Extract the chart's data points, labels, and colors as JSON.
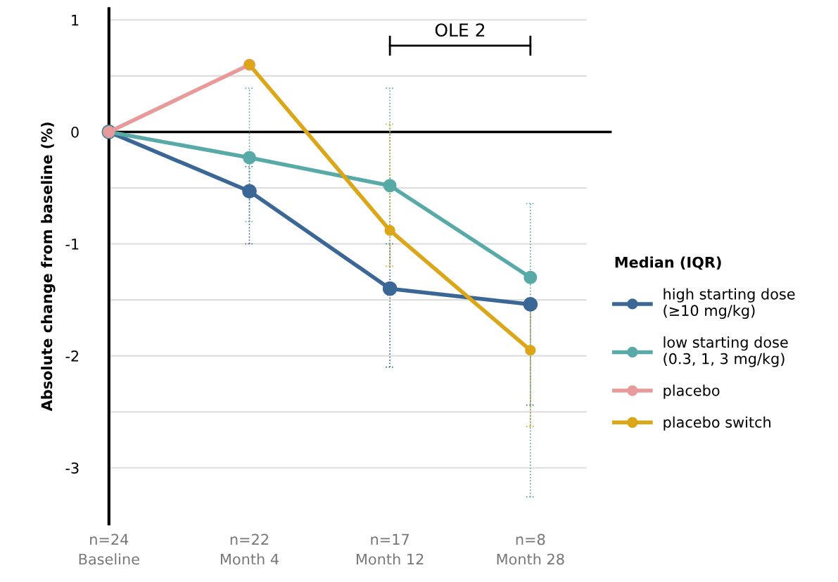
{
  "chart_data": {
    "type": "line",
    "ylabel": "Absolute change from baseline (%)",
    "legend_title": "Median (IQR)",
    "categories": [
      "n=24\nBaseline",
      "n=22\nMonth 4",
      "n=17\nMonth 12",
      "n=8\nMonth 28"
    ],
    "series": [
      {
        "name": "high starting dose\n(≥10 mg/kg)",
        "color": "#3b6796",
        "values": [
          0,
          -0.53,
          -1.4,
          -1.54
        ],
        "errors": [
          null,
          [
            -1.0,
            -0.31
          ],
          [
            -2.1,
            -1.0
          ],
          [
            -2.44,
            -1.49
          ]
        ]
      },
      {
        "name": "low starting dose\n(0.3, 1, 3 mg/kg)",
        "color": "#58aaa8",
        "values": [
          0,
          -0.23,
          -0.48,
          -1.3
        ],
        "errors": [
          null,
          [
            -0.8,
            0.39
          ],
          [
            -1.0,
            0.39
          ],
          [
            -3.26,
            -0.64
          ]
        ]
      },
      {
        "name": "placebo",
        "color": "#e89a9a",
        "values": [
          0,
          0.6,
          null,
          null
        ]
      },
      {
        "name": "placebo switch",
        "color": "#dba617",
        "values": [
          null,
          0.6,
          -0.88,
          -1.95
        ],
        "errors": [
          null,
          null,
          [
            -1.2,
            0.07
          ],
          [
            -2.63,
            -1.49
          ]
        ]
      }
    ],
    "ylim": [
      -3.5,
      1.1
    ],
    "yticks": [
      -3,
      {
        "value": -2.5,
        "label": null
      },
      -2,
      {
        "value": -1.5,
        "label": null
      },
      -1,
      {
        "value": -0.5,
        "label": null
      },
      0,
      {
        "value": 0.5,
        "label": null
      },
      1
    ],
    "grid": "y",
    "legend": "right",
    "marker": "circle",
    "line_style": "solid",
    "ref_lines": [
      {
        "axis": "y",
        "value": 0,
        "color": "#000000"
      }
    ],
    "annotations": [
      "OLE 2"
    ]
  }
}
